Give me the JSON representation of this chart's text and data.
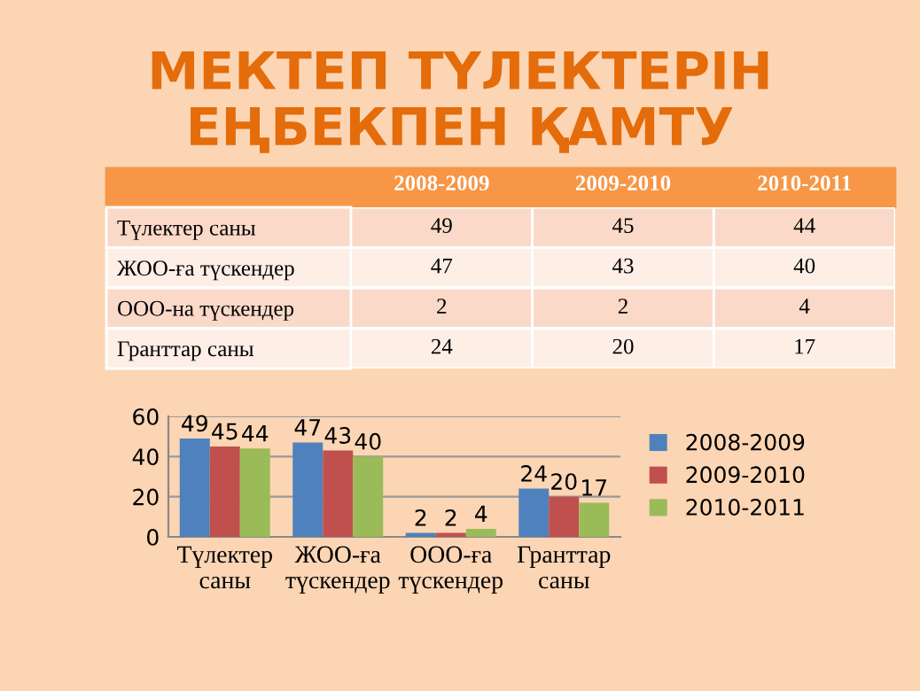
{
  "chart_data": [
    {
      "type": "heatmap",
      "title": "МЕКТЕП ТҮЛЕКТЕРІН\nЕҢБЕКПЕН ҚАМТУ",
      "categories": [
        "2008-2009",
        "2009-2010",
        "2010-2011"
      ],
      "y_categories": [
        "Түлектер саны",
        "ЖОО-ға түскендер",
        "ООО-на түскендер",
        "Гранттар саны"
      ],
      "cells": [
        [
          49,
          45,
          44
        ],
        [
          47,
          43,
          40
        ],
        [
          2,
          2,
          4
        ],
        [
          24,
          20,
          17
        ]
      ],
      "data_labels": true
    },
    {
      "type": "bar",
      "categories": [
        "Түлектер\nсаны",
        "ЖОО-ға\nтүскендер",
        "ООО-ға\nтүскендер",
        "Гранттар\nсаны"
      ],
      "series": [
        {
          "name": "2008-2009",
          "color": "#4f81bd",
          "values": [
            49,
            47,
            2,
            24
          ]
        },
        {
          "name": "2009-2010",
          "color": "#c0504d",
          "values": [
            45,
            43,
            2,
            20
          ]
        },
        {
          "name": "2010-2011",
          "color": "#9bbb59",
          "values": [
            44,
            40,
            4,
            17
          ]
        }
      ],
      "ylim": [
        0,
        60
      ],
      "yticks": [
        0,
        20,
        40,
        60
      ],
      "grid": "y",
      "legend": "right",
      "data_labels": true
    }
  ]
}
